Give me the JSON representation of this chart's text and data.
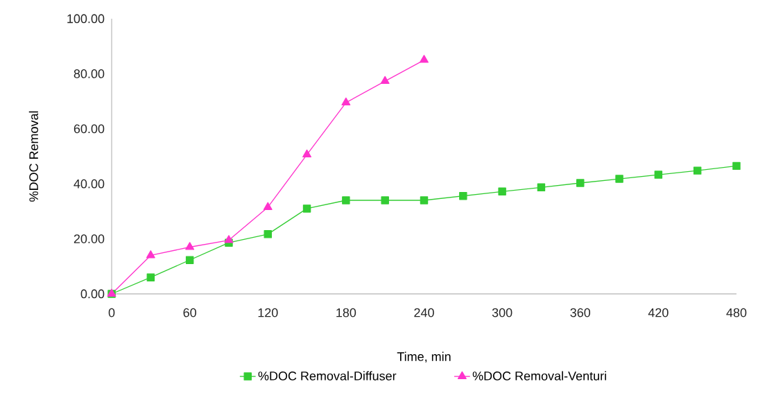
{
  "chart_data": {
    "type": "line",
    "xlabel": "Time, min",
    "ylabel": "%DOC Removal",
    "xlim": [
      0,
      480
    ],
    "xticks": [
      0,
      60,
      120,
      180,
      240,
      300,
      360,
      420,
      480
    ],
    "ylim": [
      0,
      100
    ],
    "yticks": [
      {
        "value": 0,
        "label": "0.00"
      },
      {
        "value": 20,
        "label": "20.00"
      },
      {
        "value": 40,
        "label": "40.00"
      },
      {
        "value": 60,
        "label": "60.00"
      },
      {
        "value": 80,
        "label": "80.00"
      },
      {
        "value": 100,
        "label": "100.00"
      }
    ],
    "grid": false,
    "legend": "bottom",
    "line_style": "solid",
    "series": [
      {
        "name": "%DOC Removal-Diffuser",
        "color": "#33cc33",
        "marker": "square",
        "x": [
          0,
          30,
          60,
          90,
          120,
          150,
          180,
          210,
          240,
          270,
          300,
          330,
          360,
          390,
          420,
          450,
          480
        ],
        "values": [
          0,
          6,
          12.3,
          18.6,
          21.7,
          31,
          34,
          34,
          34,
          35.6,
          37.2,
          38.7,
          40.3,
          41.8,
          43.3,
          44.8,
          46.5
        ]
      },
      {
        "name": "%DOC Removal-Venturi",
        "color": "#ff33cc",
        "marker": "triangle",
        "x": [
          0,
          30,
          60,
          90,
          120,
          150,
          180,
          210,
          240
        ],
        "values": [
          0,
          14,
          17,
          19.5,
          31.5,
          50.6,
          69.5,
          77.3,
          85
        ]
      }
    ]
  }
}
